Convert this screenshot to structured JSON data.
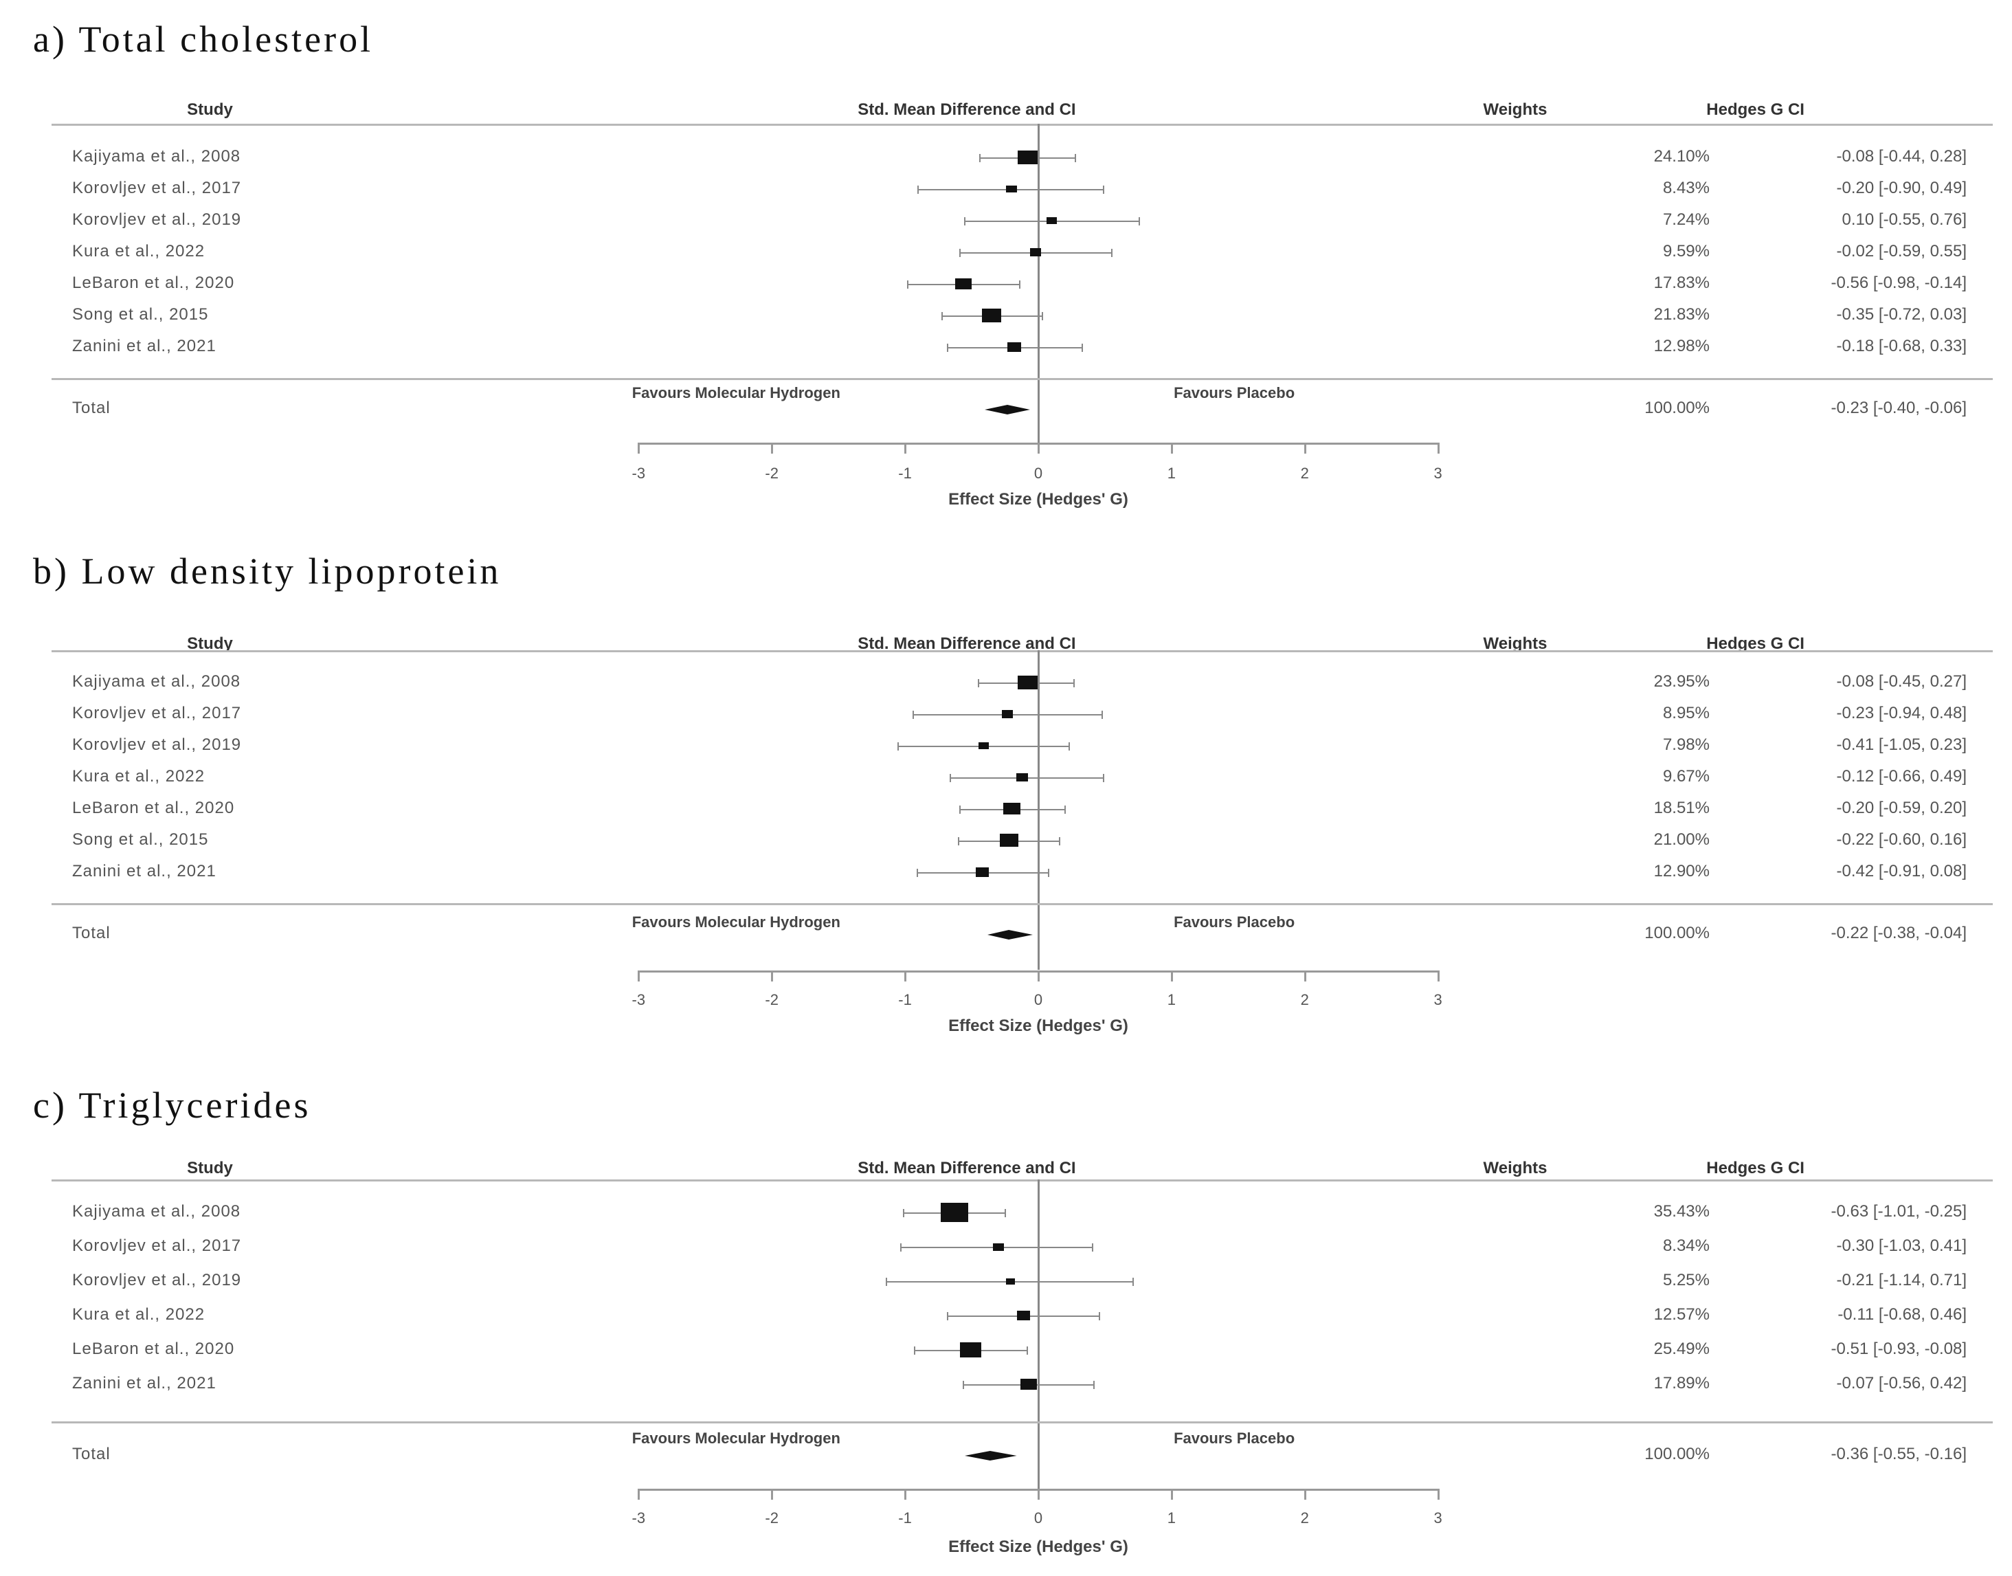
{
  "headers": {
    "study": "Study",
    "effect": "Std. Mean Difference and CI",
    "weights": "Weights",
    "hedges": "Hedges G CI"
  },
  "labels": {
    "favours_left": "Favours Molecular Hydrogen",
    "favours_right": "Favours Placebo",
    "axis_title": "Effect Size (Hedges' G)",
    "total": "Total"
  },
  "axis": {
    "ticks": [
      "-3",
      "-2",
      "-1",
      "0",
      "1",
      "2",
      "3"
    ]
  },
  "chart_data": [
    {
      "type": "forest",
      "title": "a) Total cholesterol",
      "xlabel": "Effect Size (Hedges' G)",
      "xlim": [
        -3,
        3
      ],
      "studies": [
        {
          "name": "Kajiyama et al., 2008",
          "weight": "24.10%",
          "g": -0.08,
          "lo": -0.44,
          "hi": 0.28,
          "ci_text": "-0.08 [-0.44, 0.28]"
        },
        {
          "name": "Korovljev et al., 2017",
          "weight": "8.43%",
          "g": -0.2,
          "lo": -0.9,
          "hi": 0.49,
          "ci_text": "-0.20 [-0.90, 0.49]"
        },
        {
          "name": "Korovljev et al., 2019",
          "weight": "7.24%",
          "g": 0.1,
          "lo": -0.55,
          "hi": 0.76,
          "ci_text": "0.10 [-0.55, 0.76]"
        },
        {
          "name": "Kura et al., 2022",
          "weight": "9.59%",
          "g": -0.02,
          "lo": -0.59,
          "hi": 0.55,
          "ci_text": "-0.02 [-0.59, 0.55]"
        },
        {
          "name": "LeBaron et al., 2020",
          "weight": "17.83%",
          "g": -0.56,
          "lo": -0.98,
          "hi": -0.14,
          "ci_text": "-0.56 [-0.98, -0.14]"
        },
        {
          "name": "Song et al., 2015",
          "weight": "21.83%",
          "g": -0.35,
          "lo": -0.72,
          "hi": 0.03,
          "ci_text": "-0.35 [-0.72, 0.03]"
        },
        {
          "name": "Zanini et al., 2021",
          "weight": "12.98%",
          "g": -0.18,
          "lo": -0.68,
          "hi": 0.33,
          "ci_text": "-0.18 [-0.68, 0.33]"
        }
      ],
      "total": {
        "weight": "100.00%",
        "g": -0.23,
        "lo": -0.4,
        "hi": -0.06,
        "ci_text": "-0.23 [-0.40, -0.06]"
      }
    },
    {
      "type": "forest",
      "title": "b) Low density lipoprotein",
      "xlabel": "Effect Size (Hedges' G)",
      "xlim": [
        -3,
        3
      ],
      "studies": [
        {
          "name": "Kajiyama et al., 2008",
          "weight": "23.95%",
          "g": -0.08,
          "lo": -0.45,
          "hi": 0.27,
          "ci_text": "-0.08 [-0.45, 0.27]"
        },
        {
          "name": "Korovljev et al., 2017",
          "weight": "8.95%",
          "g": -0.23,
          "lo": -0.94,
          "hi": 0.48,
          "ci_text": "-0.23 [-0.94, 0.48]"
        },
        {
          "name": "Korovljev et al., 2019",
          "weight": "7.98%",
          "g": -0.41,
          "lo": -1.05,
          "hi": 0.23,
          "ci_text": "-0.41 [-1.05, 0.23]"
        },
        {
          "name": "Kura et al., 2022",
          "weight": "9.67%",
          "g": -0.12,
          "lo": -0.66,
          "hi": 0.49,
          "ci_text": "-0.12 [-0.66, 0.49]"
        },
        {
          "name": "LeBaron et al., 2020",
          "weight": "18.51%",
          "g": -0.2,
          "lo": -0.59,
          "hi": 0.2,
          "ci_text": "-0.20 [-0.59, 0.20]"
        },
        {
          "name": "Song et al., 2015",
          "weight": "21.00%",
          "g": -0.22,
          "lo": -0.6,
          "hi": 0.16,
          "ci_text": "-0.22 [-0.60, 0.16]"
        },
        {
          "name": "Zanini et al., 2021",
          "weight": "12.90%",
          "g": -0.42,
          "lo": -0.91,
          "hi": 0.08,
          "ci_text": "-0.42 [-0.91, 0.08]"
        }
      ],
      "total": {
        "weight": "100.00%",
        "g": -0.22,
        "lo": -0.38,
        "hi": -0.04,
        "ci_text": "-0.22 [-0.38, -0.04]"
      }
    },
    {
      "type": "forest",
      "title": "c) Triglycerides",
      "xlabel": "Effect Size (Hedges' G)",
      "xlim": [
        -3,
        3
      ],
      "studies": [
        {
          "name": "Kajiyama et al., 2008",
          "weight": "35.43%",
          "g": -0.63,
          "lo": -1.01,
          "hi": -0.25,
          "ci_text": "-0.63 [-1.01, -0.25]"
        },
        {
          "name": "Korovljev et al., 2017",
          "weight": "8.34%",
          "g": -0.3,
          "lo": -1.03,
          "hi": 0.41,
          "ci_text": "-0.30 [-1.03, 0.41]"
        },
        {
          "name": "Korovljev et al., 2019",
          "weight": "5.25%",
          "g": -0.21,
          "lo": -1.14,
          "hi": 0.71,
          "ci_text": "-0.21 [-1.14, 0.71]"
        },
        {
          "name": "Kura et al., 2022",
          "weight": "12.57%",
          "g": -0.11,
          "lo": -0.68,
          "hi": 0.46,
          "ci_text": "-0.11 [-0.68, 0.46]"
        },
        {
          "name": "LeBaron et al., 2020",
          "weight": "25.49%",
          "g": -0.51,
          "lo": -0.93,
          "hi": -0.08,
          "ci_text": "-0.51 [-0.93, -0.08]"
        },
        {
          "name": "Zanini et al., 2021",
          "weight": "17.89%",
          "g": -0.07,
          "lo": -0.56,
          "hi": 0.42,
          "ci_text": "-0.07 [-0.56, 0.42]"
        }
      ],
      "total": {
        "weight": "100.00%",
        "g": -0.36,
        "lo": -0.55,
        "hi": -0.16,
        "ci_text": "-0.36 [-0.55, -0.16]"
      }
    }
  ]
}
